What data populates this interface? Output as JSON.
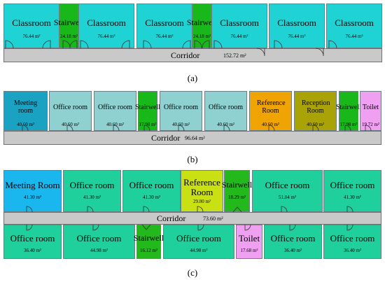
{
  "plan_a": {
    "caption": "(a)",
    "corridor": {
      "label": "Corridor",
      "area": "152.72 m²"
    },
    "rooms": [
      {
        "name": "Classroom",
        "area": "76.44 m²"
      },
      {
        "name": "Stairwell",
        "area": "24.18 m²"
      },
      {
        "name": "Classroom",
        "area": "76.44 m²"
      },
      {
        "name": "Classroom",
        "area": "76.44 m²"
      },
      {
        "name": "Stairwell",
        "area": "24.18 m²"
      },
      {
        "name": "Classroom",
        "area": "76.44 m²"
      },
      {
        "name": "Classroom",
        "area": "76.44 m²"
      },
      {
        "name": "Classroom",
        "area": "76.44 m²"
      }
    ]
  },
  "plan_b": {
    "caption": "(b)",
    "corridor": {
      "label": "Corridor",
      "area": "96.64 m²"
    },
    "rooms": [
      {
        "name": "Meeting room",
        "area": "40.60 m²"
      },
      {
        "name": "Office room",
        "area": "40.60 m²"
      },
      {
        "name": "Office room",
        "area": "40.60 m²"
      },
      {
        "name": "Stairwell",
        "area": "17.98 m²"
      },
      {
        "name": "Office room",
        "area": "40.60 m²"
      },
      {
        "name": "Office room",
        "area": "40.60 m²"
      },
      {
        "name": "Reference Room",
        "area": "40.60 m²"
      },
      {
        "name": "Reception Room",
        "area": "40.60 m²"
      },
      {
        "name": "Stairwell",
        "area": "17.98 m²"
      },
      {
        "name": "Toilet",
        "area": "19.72 m²"
      }
    ]
  },
  "plan_c": {
    "caption": "(c)",
    "corridor": {
      "label": "Corridor",
      "area": "73.60 m²"
    },
    "top_rooms": [
      {
        "name": "Meeting Room",
        "area": "41.30 m²"
      },
      {
        "name": "Office room",
        "area": "41.30 m²"
      },
      {
        "name": "Office room",
        "area": "41.30 m²"
      },
      {
        "name": "Reference Room",
        "area": "29.80 m²"
      },
      {
        "name": "Stairwell",
        "area": "18.29 m²"
      },
      {
        "name": "Office room",
        "area": "51.04 m²"
      },
      {
        "name": "Office room",
        "area": "41.30 m²"
      }
    ],
    "bottom_rooms": [
      {
        "name": "Office room",
        "area": "36.40 m²"
      },
      {
        "name": "Office room",
        "area": "44.98 m²"
      },
      {
        "name": "Stairwell",
        "area": "16.12 m²"
      },
      {
        "name": "Office room",
        "area": "44.98 m²"
      },
      {
        "name": "Toilet",
        "area": "17.68 m²"
      },
      {
        "name": "Office room",
        "area": "36.40 m²"
      },
      {
        "name": "Office room",
        "area": "36.40 m²"
      }
    ]
  },
  "colors": {
    "classroom": "#1fd2d4",
    "stairwell": "#18b81a",
    "corridor": "#c9c9c9",
    "office_b": "#8fd0d0",
    "meeting_b": "#19a2c2",
    "reference_b": "#f0a404",
    "reception_b": "#aaa308",
    "toilet": "#f0a0f0",
    "office_c": "#1fcf9c",
    "meeting_c": "#1ab7ee",
    "reference_c": "#c9e012"
  }
}
